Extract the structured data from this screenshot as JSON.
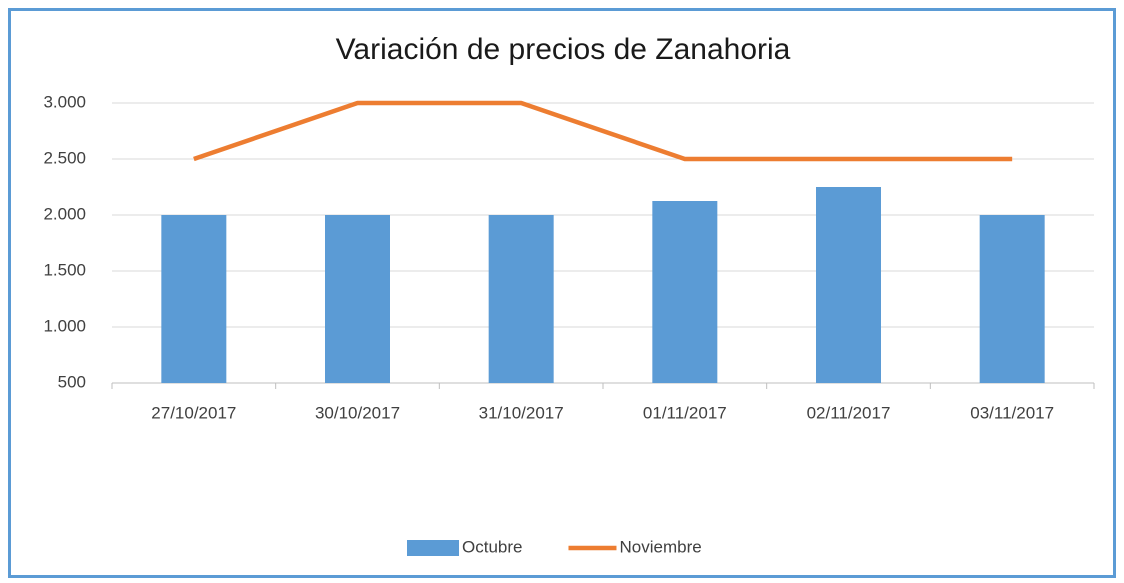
{
  "chart_data": {
    "type": "combo",
    "title": "Variación de precios de Zanahoria",
    "categories": [
      "27/10/2017",
      "30/10/2017",
      "31/10/2017",
      "01/11/2017",
      "02/11/2017",
      "03/11/2017"
    ],
    "series": [
      {
        "name": "Octubre",
        "type": "bar",
        "color": "#5b9bd5",
        "values": [
          2000,
          2000,
          2000,
          2125,
          2250,
          2000
        ]
      },
      {
        "name": "Noviembre",
        "type": "line",
        "color": "#ed7d31",
        "values": [
          2500,
          3000,
          3000,
          2500,
          2500,
          2500
        ]
      }
    ],
    "ylim": [
      500,
      3000
    ],
    "yticks": [
      500,
      {
        "value": 1000,
        "label": "1.000"
      },
      {
        "value": 1500,
        "label": "1.500"
      },
      {
        "value": 2000,
        "label": "2.000"
      },
      {
        "value": 2500,
        "label": "2.500"
      },
      {
        "value": 3000,
        "label": "3.000"
      }
    ],
    "grid": true,
    "legend": "bottom"
  }
}
